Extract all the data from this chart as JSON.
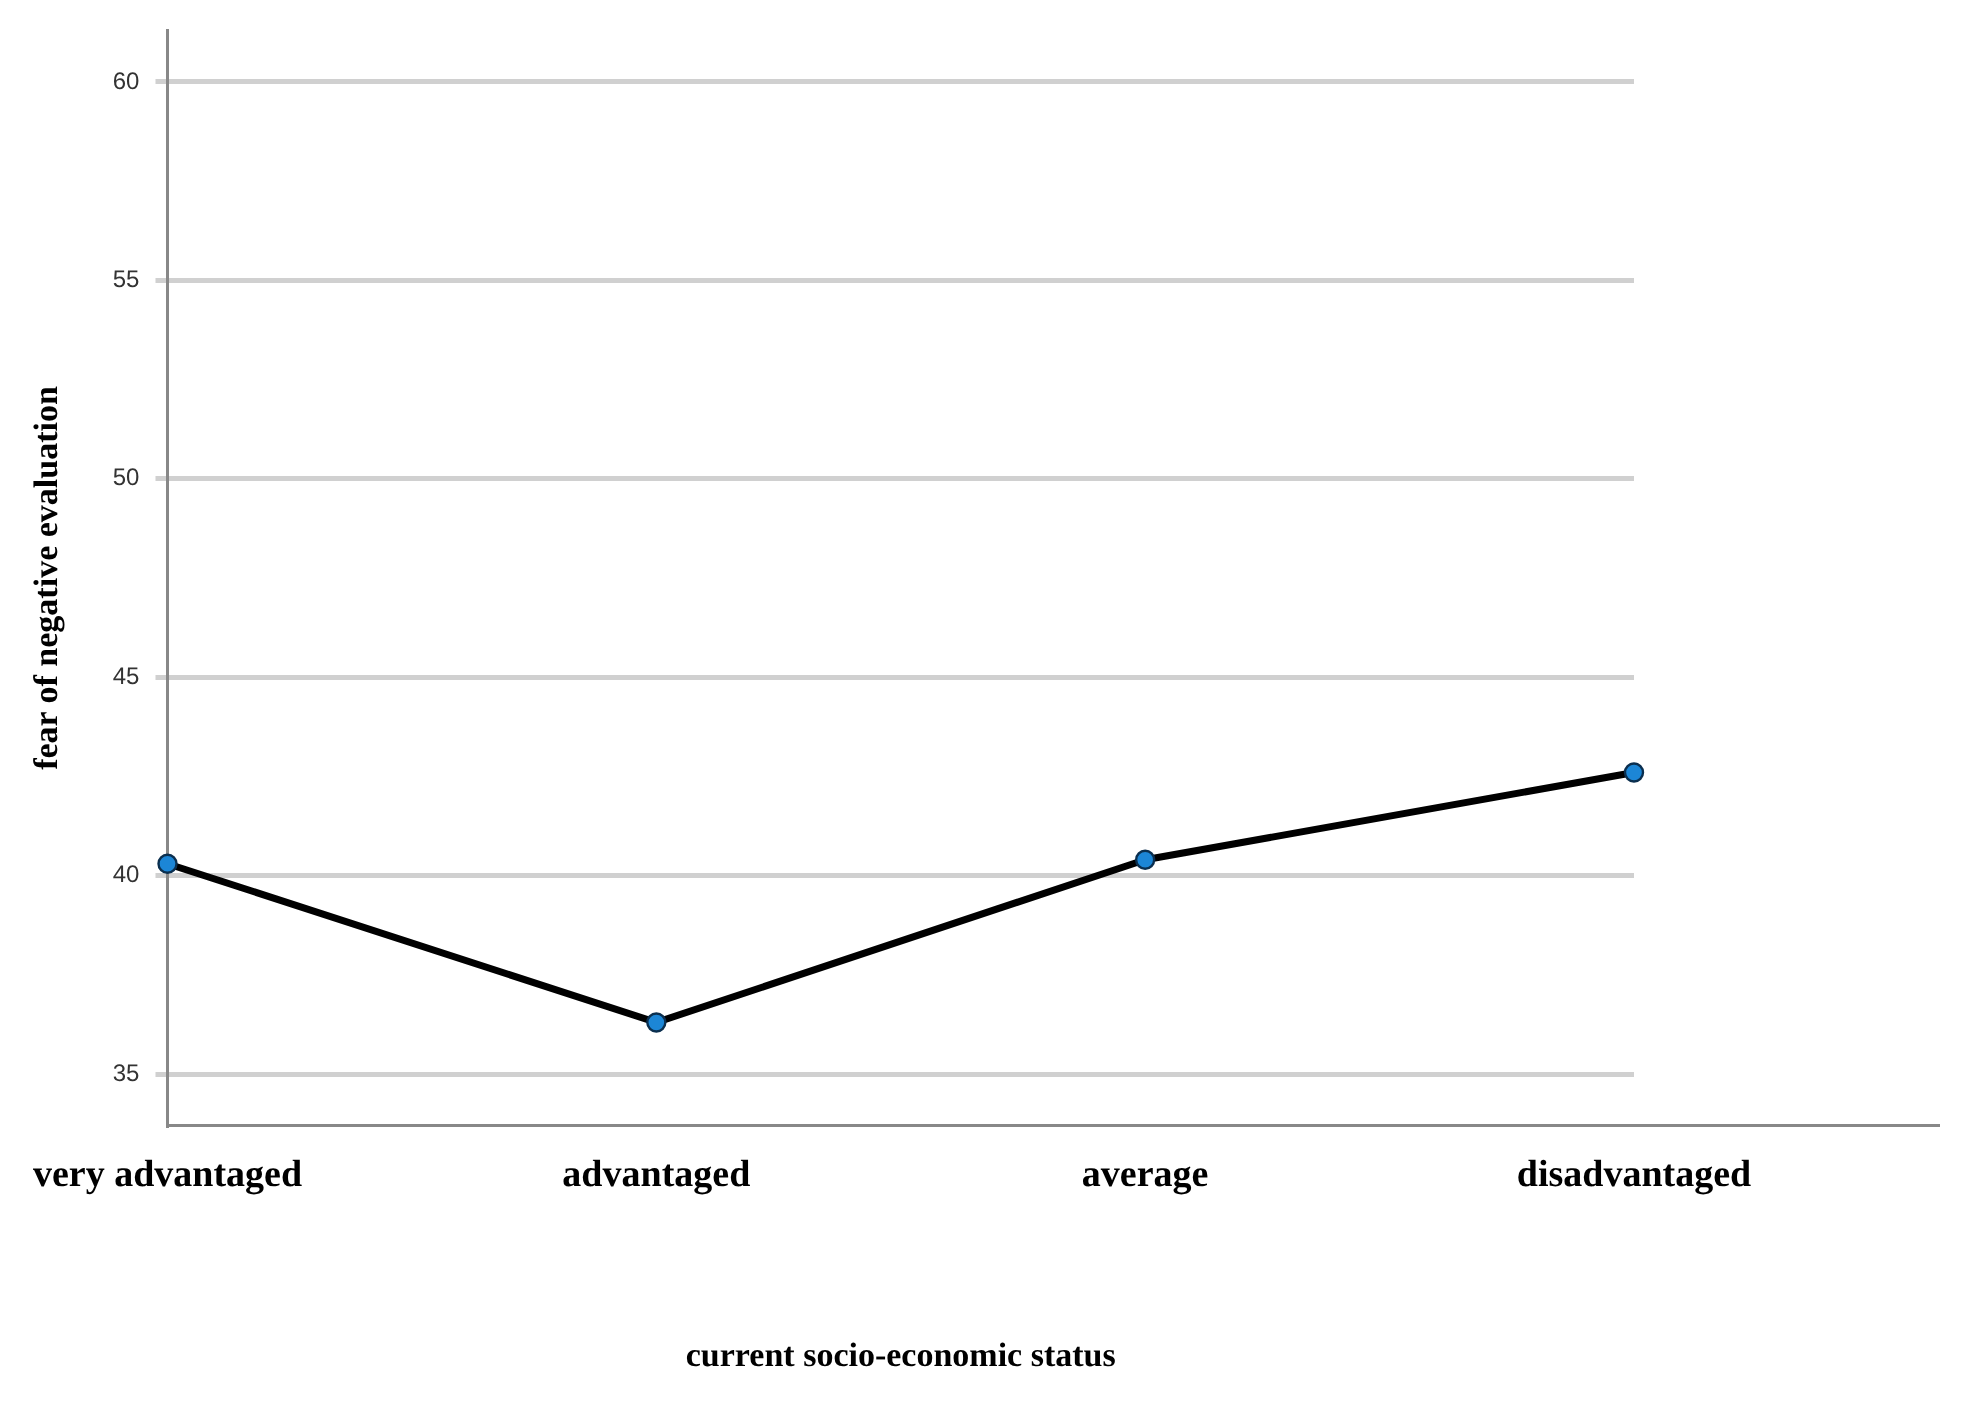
{
  "chart_data": {
    "type": "line",
    "xlabel": "current socio-economic status",
    "ylabel": "fear of negative evaluation",
    "categories": [
      "very advantaged",
      "advantaged",
      "average",
      "disadvantaged"
    ],
    "series": [
      {
        "color": "#000000",
        "values": [
          40.3,
          36.3,
          40.4,
          42.6
        ]
      }
    ],
    "ylim": [
      33.7,
      61.3
    ],
    "yticks": [
      35,
      40,
      45,
      50,
      55,
      60
    ],
    "grid": "y",
    "legend": false,
    "marker": "circle",
    "line_style": "solid"
  }
}
